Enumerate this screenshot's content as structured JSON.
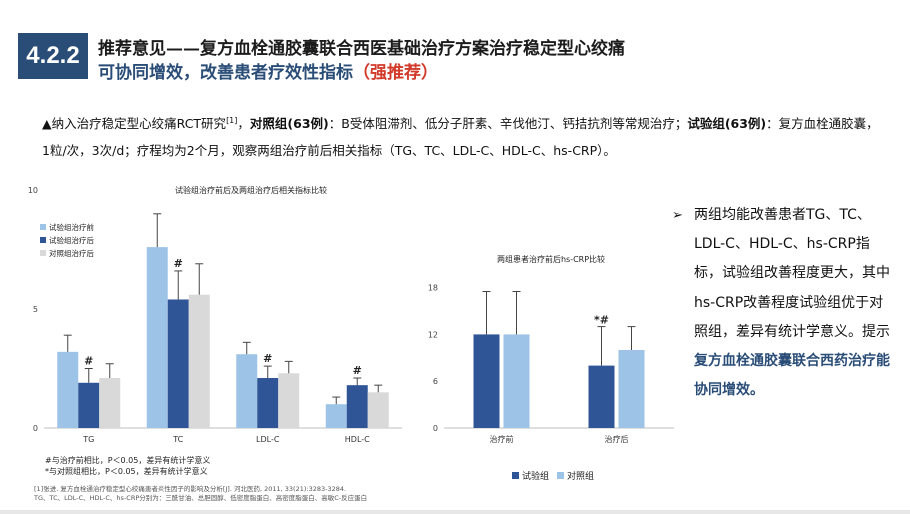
{
  "header": {
    "section_number": "4.2.2",
    "title_line1": "推荐意见——复方血栓通胶囊联合西医基础治疗方案治疗稳定型心绞痛",
    "title_line2_main": "可协同增效，改善患者疗效性指标",
    "title_line2_strength": "（强推荐）"
  },
  "intro": {
    "bullet": "▲",
    "part1": "纳入治疗稳定型心绞痛RCT研究",
    "citation": "[1]",
    "sep1": "，",
    "control_label": "对照组(63例)",
    "control_desc": "：B受体阻滞剂、低分子肝素、辛伐他汀、钙拮抗剂等常规治疗；",
    "trial_label": "试验组(63例)",
    "trial_desc": "：复方血栓通胶囊，1粒/次，3次/d；疗程均为2个月，观察两组治疗前后相关指标（TG、TC、LDL-C、HDL-C、hs-CRP）。"
  },
  "chart_data": [
    {
      "type": "bar",
      "title": "试验组治疗前后及两组治疗后相关指标比较",
      "categories": [
        "TG",
        "TC",
        "LDL-C",
        "HDL-C"
      ],
      "ylim": [
        0,
        10
      ],
      "yticks": [
        0,
        5,
        10
      ],
      "legend_position": "top-left",
      "series": [
        {
          "name": "试验组治疗前",
          "color": "#9dc3e6",
          "values": [
            3.2,
            7.6,
            3.1,
            1.0
          ],
          "errors": [
            0.7,
            1.4,
            0.5,
            0.3
          ],
          "marks": [
            "",
            "",
            "",
            ""
          ]
        },
        {
          "name": "试验组治疗后",
          "color": "#2f5597",
          "values": [
            1.9,
            5.4,
            2.1,
            1.8
          ],
          "errors": [
            0.6,
            1.2,
            0.5,
            0.3
          ],
          "marks": [
            "#",
            "#",
            "#",
            "#"
          ]
        },
        {
          "name": "对照组治疗后",
          "color": "#d9d9d9",
          "values": [
            2.1,
            5.6,
            2.3,
            1.5
          ],
          "errors": [
            0.6,
            1.3,
            0.5,
            0.3
          ],
          "marks": [
            "",
            "",
            "",
            ""
          ]
        }
      ]
    },
    {
      "type": "bar",
      "title": "两组患者治疗前后hs-CRP比较",
      "categories": [
        "治疗前",
        "治疗后"
      ],
      "ylim": [
        0,
        20
      ],
      "yticks": [
        0,
        6,
        12,
        18
      ],
      "legend_position": "bottom",
      "series": [
        {
          "name": "试验组",
          "color": "#2f5597",
          "values": [
            12.0,
            8.0
          ],
          "errors": [
            5.5,
            5.0
          ],
          "marks": [
            "",
            "*#"
          ]
        },
        {
          "name": "对照组",
          "color": "#9dc3e6",
          "values": [
            12.0,
            10.0
          ],
          "errors": [
            5.5,
            3.0
          ],
          "marks": [
            "",
            ""
          ]
        }
      ]
    }
  ],
  "notes": {
    "line1": "#与治疗前相比，P＜0.05，差异有统计学意义",
    "line2": "*与对照组相比，P＜0.05，差异有统计学意义"
  },
  "references": {
    "line1": "[1]张进. 复方血栓通治疗稳定型心绞痛患者炎性因子的影响及分析[J]. 河北医药, 2011, 33(21):3283-3284.",
    "line2": "TG、TC、LDL-C、HDL-C、hs-CRP分别为：三酰甘油、总胆固醇、低密度脂蛋白、高密度脂蛋白、高敏C-反应蛋白"
  },
  "conclusion": {
    "arrow": "➢",
    "text": "两组均能改善患者TG、TC、LDL-C、HDL-C、hs-CRP指标，试验组改善程度更大，其中hs-CRP改善程度试验组优于对照组，差异有统计学意义。提示",
    "highlight": "复方血栓通胶囊联合西药治疗能协同增效。"
  }
}
